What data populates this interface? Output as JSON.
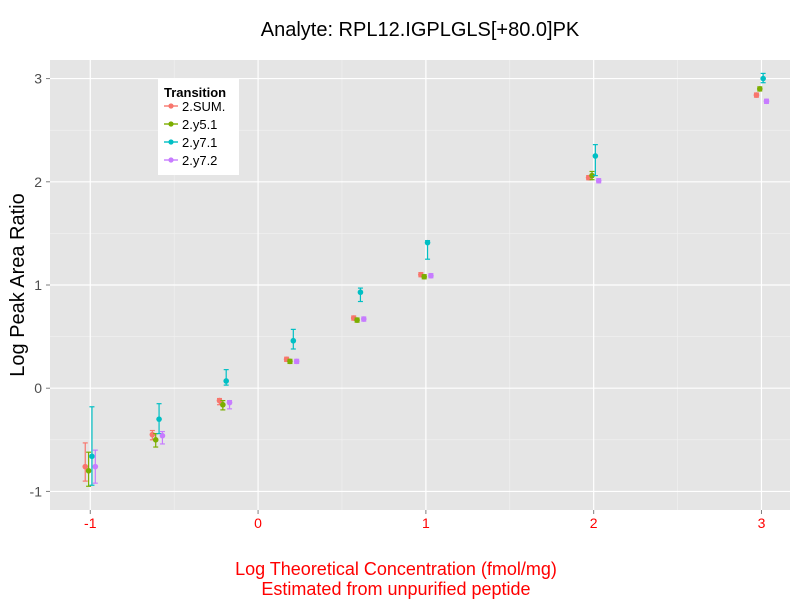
{
  "chart_data": {
    "type": "scatter",
    "title": "Analyte: RPL12.IGPLGLS[+80.0]PK",
    "xlabel_lines": [
      "Log Theoretical Concentration (fmol/mg)",
      "Estimated from unpurified peptide"
    ],
    "ylabel": "Log Peak Area Ratio",
    "xlabel_color": "#ff0000",
    "x_tick_color": "#ff0000",
    "x_ticks": [
      -1,
      0,
      1,
      2,
      3
    ],
    "x_tick_labels": [
      "-1",
      "0",
      "1",
      "2",
      "3"
    ],
    "y_ticks": [
      -1,
      0,
      1,
      2,
      3
    ],
    "y_tick_labels": [
      "-1",
      "0",
      "1",
      "2",
      "3"
    ],
    "xlim": [
      -1.24,
      3.17
    ],
    "ylim": [
      -1.18,
      3.18
    ],
    "grid": true,
    "panel_background": "#e5e5e5",
    "legend": {
      "title": "Transition",
      "position": "top-left"
    },
    "x_dodge": [
      -0.03,
      -0.01,
      0.01,
      0.03
    ],
    "series": [
      {
        "name": "2.SUM.",
        "color": "#f8766d",
        "points": [
          {
            "x": -1,
            "y": -0.76,
            "lo": -0.9,
            "hi": -0.53
          },
          {
            "x": -0.6,
            "y": -0.45,
            "lo": -0.5,
            "hi": -0.41
          },
          {
            "x": -0.2,
            "y": -0.12,
            "lo": -0.16,
            "hi": -0.1
          },
          {
            "x": 0.2,
            "y": 0.28,
            "lo": 0.26,
            "hi": 0.3
          },
          {
            "x": 0.6,
            "y": 0.68,
            "lo": 0.66,
            "hi": 0.7
          },
          {
            "x": 1,
            "y": 1.1,
            "lo": 1.08,
            "hi": 1.12
          },
          {
            "x": 2,
            "y": 2.04,
            "lo": 2.02,
            "hi": 2.06
          },
          {
            "x": 3,
            "y": 2.84,
            "lo": 2.82,
            "hi": 2.86
          }
        ]
      },
      {
        "name": "2.y5.1",
        "color": "#7cae00",
        "points": [
          {
            "x": -1,
            "y": -0.8,
            "lo": -0.95,
            "hi": -0.62
          },
          {
            "x": -0.6,
            "y": -0.5,
            "lo": -0.57,
            "hi": -0.44
          },
          {
            "x": -0.2,
            "y": -0.16,
            "lo": -0.21,
            "hi": -0.12
          },
          {
            "x": 0.2,
            "y": 0.26,
            "lo": 0.24,
            "hi": 0.28
          },
          {
            "x": 0.6,
            "y": 0.66,
            "lo": 0.64,
            "hi": 0.68
          },
          {
            "x": 1,
            "y": 1.08,
            "lo": 1.06,
            "hi": 1.1
          },
          {
            "x": 2,
            "y": 2.06,
            "lo": 2.02,
            "hi": 2.1
          },
          {
            "x": 3,
            "y": 2.9,
            "lo": 2.88,
            "hi": 2.92
          }
        ]
      },
      {
        "name": "2.y7.1",
        "color": "#00bfc4",
        "points": [
          {
            "x": -1,
            "y": -0.66,
            "lo": -0.94,
            "hi": -0.18
          },
          {
            "x": -0.6,
            "y": -0.3,
            "lo": -0.44,
            "hi": -0.15
          },
          {
            "x": -0.2,
            "y": 0.07,
            "lo": 0.03,
            "hi": 0.18
          },
          {
            "x": 0.2,
            "y": 0.46,
            "lo": 0.38,
            "hi": 0.57
          },
          {
            "x": 0.6,
            "y": 0.93,
            "lo": 0.84,
            "hi": 0.97
          },
          {
            "x": 1,
            "y": 1.41,
            "lo": 1.25,
            "hi": 1.43
          },
          {
            "x": 2,
            "y": 2.25,
            "lo": 2.06,
            "hi": 2.36
          },
          {
            "x": 3,
            "y": 3.0,
            "lo": 2.96,
            "hi": 3.05
          }
        ]
      },
      {
        "name": "2.y7.2",
        "color": "#c77cff",
        "points": [
          {
            "x": -1,
            "y": -0.76,
            "lo": -0.92,
            "hi": -0.6
          },
          {
            "x": -0.6,
            "y": -0.46,
            "lo": -0.54,
            "hi": -0.42
          },
          {
            "x": -0.2,
            "y": -0.14,
            "lo": -0.2,
            "hi": -0.12
          },
          {
            "x": 0.2,
            "y": 0.26,
            "lo": 0.24,
            "hi": 0.28
          },
          {
            "x": 0.6,
            "y": 0.67,
            "lo": 0.65,
            "hi": 0.69
          },
          {
            "x": 1,
            "y": 1.09,
            "lo": 1.07,
            "hi": 1.11
          },
          {
            "x": 2,
            "y": 2.01,
            "lo": 1.99,
            "hi": 2.03
          },
          {
            "x": 3,
            "y": 2.78,
            "lo": 2.76,
            "hi": 2.8
          }
        ]
      }
    ]
  }
}
